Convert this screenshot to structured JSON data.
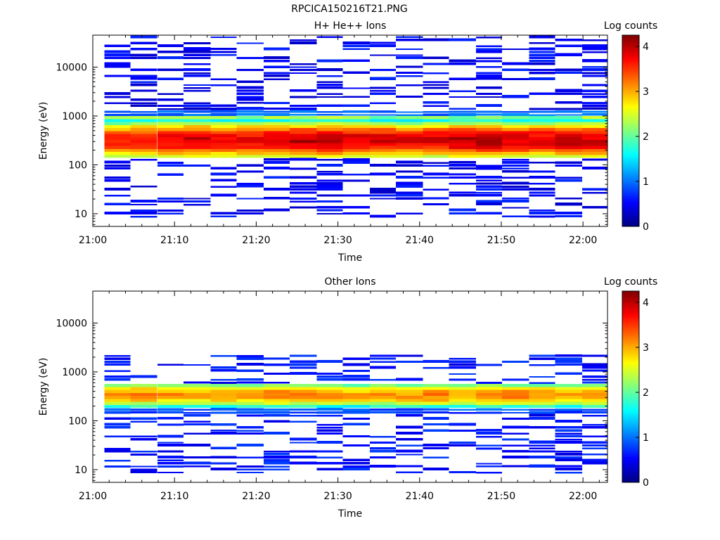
{
  "figure": {
    "title": "RPCICA150216T21.PNG"
  },
  "chart_data": [
    {
      "type": "heatmap",
      "title": "H+ He++ Ions",
      "xlabel": "Time",
      "ylabel": "Energy (eV)",
      "x_ticks": [
        "21:00",
        "21:10",
        "21:20",
        "21:30",
        "21:40",
        "21:50",
        "22:00"
      ],
      "x_tick_minutes": [
        0,
        10,
        20,
        30,
        40,
        50,
        60
      ],
      "xlim_minutes": [
        0,
        63
      ],
      "y_scale": "log",
      "y_ticks": [
        "10",
        "100",
        "1000",
        "10000"
      ],
      "y_tick_values": [
        10,
        100,
        1000,
        10000
      ],
      "ylim": [
        5.5,
        45000
      ],
      "colorbar": {
        "label": "Log counts",
        "ticks": [
          "0",
          "1",
          "2",
          "3",
          "4"
        ],
        "range": [
          0,
          4.25
        ]
      },
      "time_bins_start_minutes": [
        1.4,
        4.6,
        7.9,
        11.1,
        14.4,
        17.6,
        20.9,
        24.1,
        27.4,
        30.6,
        33.9,
        37.1,
        40.4,
        43.6,
        46.9,
        50.1,
        53.4,
        56.6,
        59.9,
        63.1
      ],
      "core_band": {
        "energy_range_eV": [
          150,
          1300
        ],
        "peak_energy_eV": 320,
        "peak_log_counts": [
          3.6,
          3.7,
          3.8,
          3.9,
          3.8,
          3.8,
          3.9,
          4.0,
          4.0,
          3.9,
          3.9,
          3.8,
          3.9,
          4.0,
          4.0,
          3.9,
          3.9,
          4.0,
          3.9
        ]
      },
      "secondary_band": {
        "energy_eV": 950,
        "log_counts": 2.2
      },
      "sparse_counts_log": 0.3,
      "sparse_energy_range_eV": [
        8,
        42000
      ]
    },
    {
      "type": "heatmap",
      "title": "Other Ions",
      "xlabel": "Time",
      "ylabel": "Energy (eV)",
      "x_ticks": [
        "21:00",
        "21:10",
        "21:20",
        "21:30",
        "21:40",
        "21:50",
        "22:00"
      ],
      "x_tick_minutes": [
        0,
        10,
        20,
        30,
        40,
        50,
        60
      ],
      "xlim_minutes": [
        0,
        63
      ],
      "y_scale": "log",
      "y_ticks": [
        "10",
        "100",
        "1000",
        "10000"
      ],
      "y_tick_values": [
        10,
        100,
        1000,
        10000
      ],
      "ylim": [
        5.5,
        45000
      ],
      "colorbar": {
        "label": "Log counts",
        "ticks": [
          "0",
          "1",
          "2",
          "3",
          "4"
        ],
        "range": [
          0,
          4.25
        ]
      },
      "time_bins_start_minutes": [
        1.4,
        4.6,
        7.9,
        11.1,
        14.4,
        17.6,
        20.9,
        24.1,
        27.4,
        30.6,
        33.9,
        37.1,
        40.4,
        43.6,
        46.9,
        50.1,
        53.4,
        56.6,
        59.9,
        63.1
      ],
      "core_band": {
        "energy_range_eV": [
          150,
          600
        ],
        "peak_energy_eV": 340,
        "peak_log_counts": [
          3.1,
          3.2,
          3.1,
          3.0,
          3.1,
          3.0,
          3.2,
          3.1,
          3.1,
          3.0,
          3.1,
          3.1,
          3.2,
          3.1,
          3.2,
          3.2,
          3.1,
          3.1,
          3.2
        ]
      },
      "sparse_counts_log": 0.4,
      "sparse_energy_range_eV": [
        8,
        2200
      ]
    }
  ]
}
